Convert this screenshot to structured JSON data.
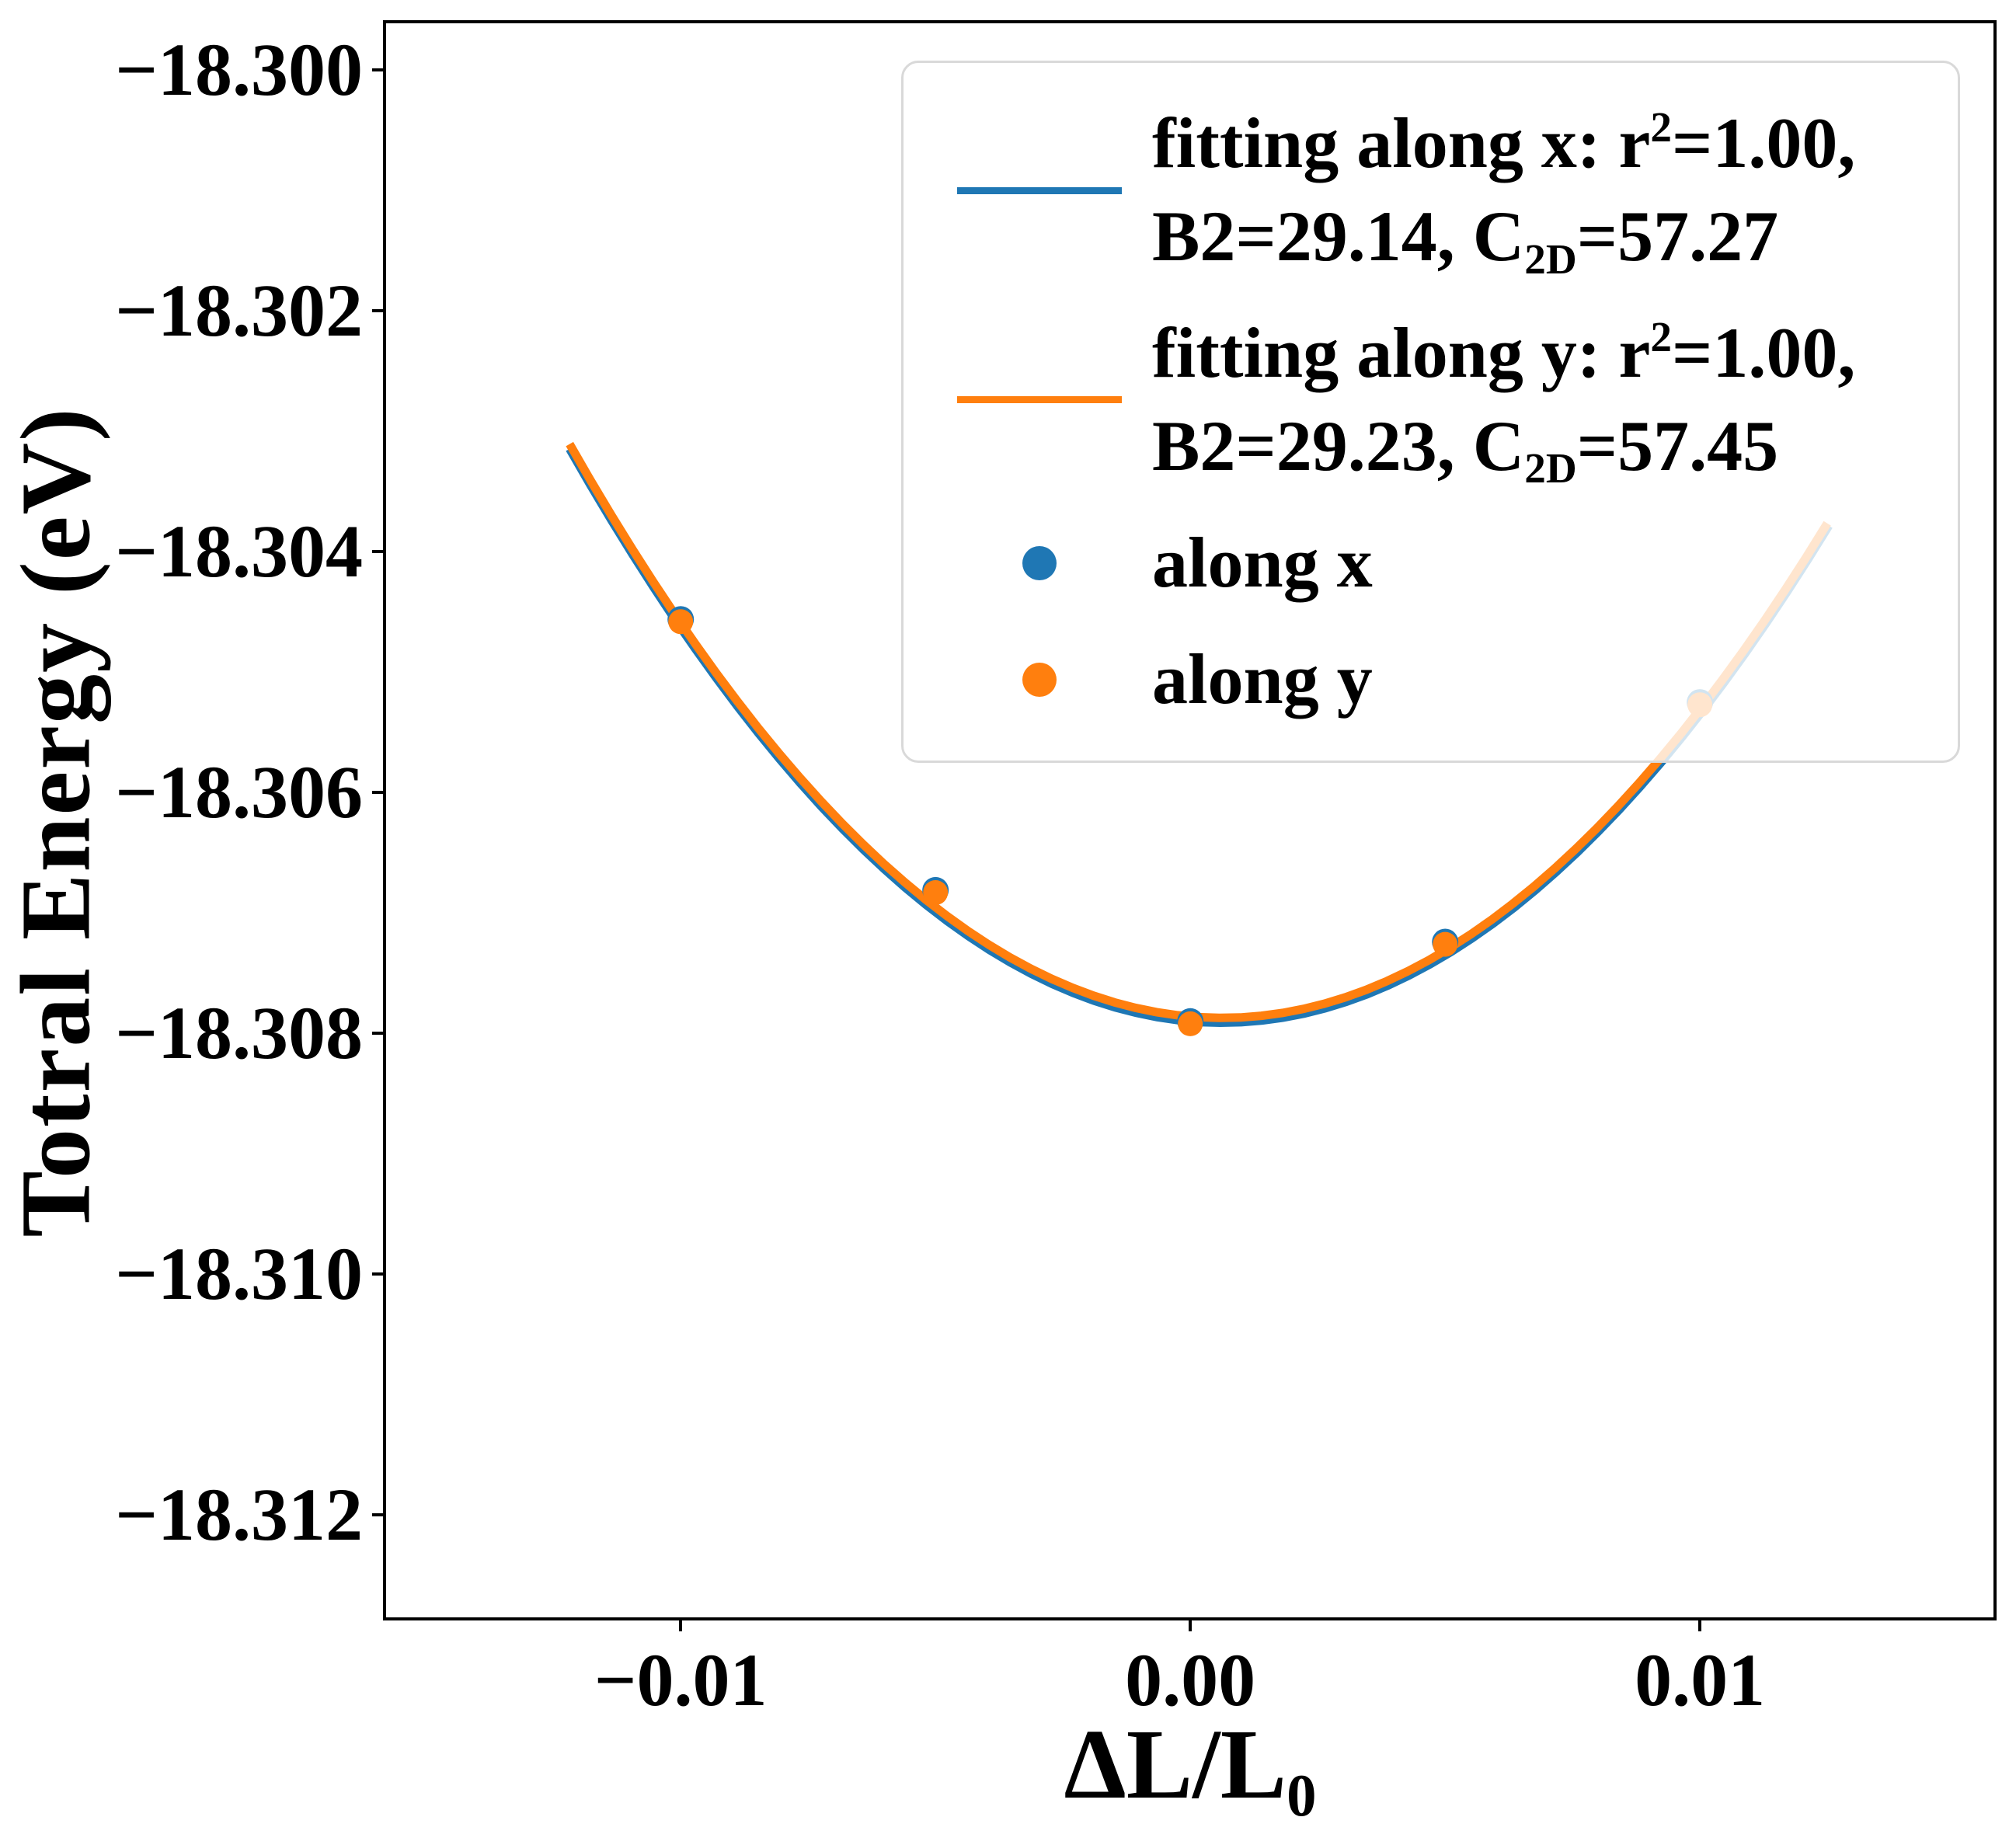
{
  "figure": {
    "ylabel": "Totral Energy (eV)",
    "xlabel_main": "ΔL/L",
    "xlabel_sub": "0"
  },
  "chart_data": {
    "type": "scatter",
    "title": "",
    "xlabel": "ΔL/L_0",
    "ylabel": "Totral Energy (eV)",
    "grid": false,
    "xlim": [
      -0.01578,
      0.01576
    ],
    "ylim": [
      -18.31285,
      -18.29961
    ],
    "xticks": [
      {
        "label": "−0.01",
        "value": -0.01
      },
      {
        "label": "0.00",
        "value": 0.0
      },
      {
        "label": "0.01",
        "value": 0.01
      }
    ],
    "yticks": [
      {
        "label": "−18.300",
        "value": -18.3
      },
      {
        "label": "−18.302",
        "value": -18.302
      },
      {
        "label": "−18.304",
        "value": -18.304
      },
      {
        "label": "−18.306",
        "value": -18.306
      },
      {
        "label": "−18.308",
        "value": -18.308
      },
      {
        "label": "−18.310",
        "value": -18.31
      },
      {
        "label": "−18.312",
        "value": -18.312
      }
    ],
    "series": [
      {
        "name": "along x",
        "color": "#1f77b4",
        "marker": "circle",
        "points": [
          [
            -0.01,
            -18.30456
          ],
          [
            -0.005,
            -18.30681
          ],
          [
            0.0,
            -18.3079
          ],
          [
            0.005,
            -18.30724
          ],
          [
            0.01,
            -18.30525
          ]
        ]
      },
      {
        "name": "along y",
        "color": "#ff7f0e",
        "marker": "circle",
        "points": [
          [
            -0.01,
            -18.30458
          ],
          [
            -0.005,
            -18.30683
          ],
          [
            0.0,
            -18.30792
          ],
          [
            0.005,
            -18.30726
          ],
          [
            0.01,
            -18.30527
          ]
        ]
      }
    ],
    "fits": [
      {
        "name": "fitting along x",
        "color": "#1f77b4",
        "r2": 1.0,
        "B2": 29.14,
        "C2D": 57.27,
        "coeffs": {
          "a": 29.1,
          "b": -0.036,
          "c": -18.3079
        },
        "domain": [
          -0.01218,
          0.01253
        ]
      },
      {
        "name": "fitting along y",
        "color": "#ff7f0e",
        "r2": 1.0,
        "B2": 29.23,
        "C2D": 57.45,
        "coeffs": {
          "a": 29.1,
          "b": -0.036,
          "c": -18.30786
        },
        "domain": [
          -0.01218,
          0.0125
        ]
      }
    ],
    "legend": {
      "position": "upper right",
      "entries": [
        {
          "type": "line",
          "color": "#1f77b4",
          "line1_pre": "fitting along x: r",
          "line1_sup": "2",
          "line1_post": "=1.00,",
          "line2_pre": "B2=29.14, C",
          "line2_sub": "2D",
          "line2_post": "=57.27"
        },
        {
          "type": "line",
          "color": "#ff7f0e",
          "line1_pre": "fitting along y: r",
          "line1_sup": "2",
          "line1_post": "=1.00,",
          "line2_pre": "B2=29.23, C",
          "line2_sub": "2D",
          "line2_post": "=57.45"
        },
        {
          "type": "marker",
          "color": "#1f77b4",
          "label": "along x"
        },
        {
          "type": "marker",
          "color": "#ff7f0e",
          "label": "along y"
        }
      ]
    }
  }
}
